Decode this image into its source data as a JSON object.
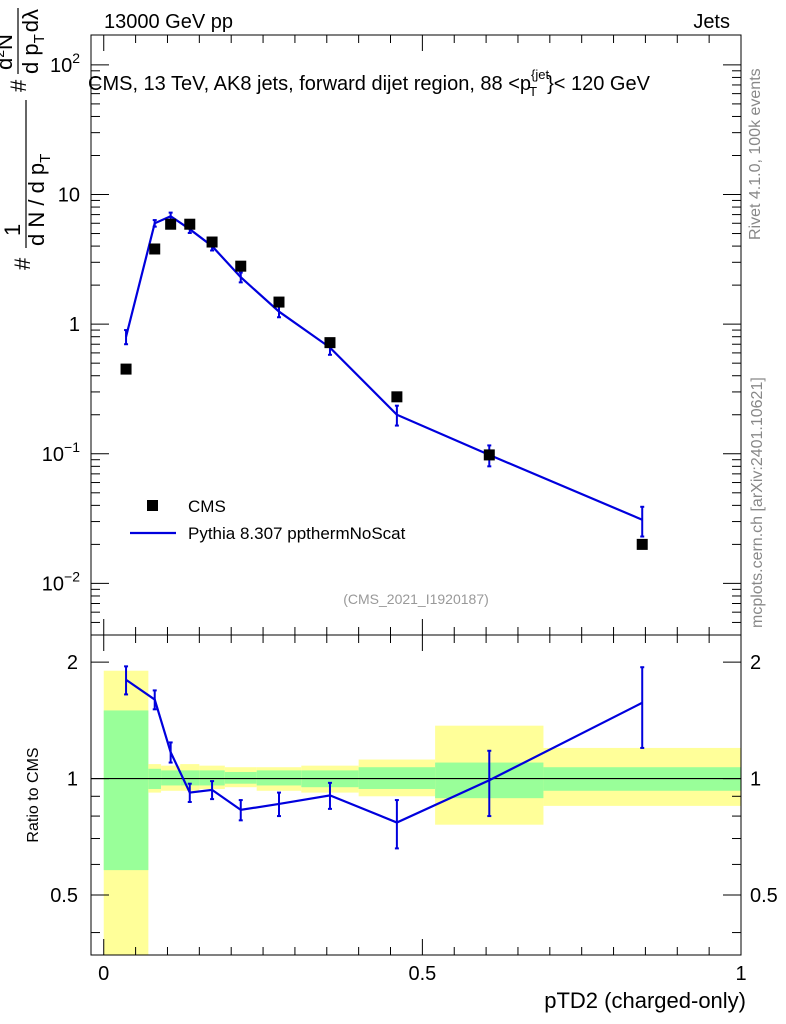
{
  "header": {
    "left": "13000 GeV pp",
    "right": "Jets"
  },
  "side_labels": {
    "rivet": "Rivet 4.1.0,  100k events",
    "mcplots": "mcplots.cern.ch [arXiv:2401.10621]"
  },
  "chart_data": {
    "type": "scatter",
    "title": "CMS, 13 TeV, AK8 jets, forward dijet region, 88 <p",
    "title_sup": "{jet",
    "title_sub": "T",
    "title_end": "}< 120 GeV",
    "analysis_id": "(CMS_2021_I1920187)",
    "xlabel": "pTD2 (charged-only)",
    "ylabel_main": {
      "hash1": "#",
      "one": "1",
      "dN": "d N / d p",
      "dN_sub": "T",
      "hash2": "#",
      "d2N": "d",
      "d2N_sup": "2",
      "d2N_N": "N",
      "dpt": "d p",
      "dpt_sub": "T",
      "dlambda": "dλ"
    },
    "ylabel_ratio": "Ratio to CMS",
    "xlim": [
      -0.02,
      1.0
    ],
    "ylim_main": [
      0.004,
      170
    ],
    "ylim_ratio": [
      0.35,
      2.35
    ],
    "x_ticks": [
      {
        "v": 0,
        "label": "0"
      },
      {
        "v": 0.5,
        "label": "0.5"
      },
      {
        "v": 1,
        "label": "1"
      }
    ],
    "y_ticks_main": [
      {
        "v": 0.01,
        "base": "10",
        "exp": "−2"
      },
      {
        "v": 0.1,
        "base": "10",
        "exp": "−1"
      },
      {
        "v": 1,
        "base": "1",
        "exp": ""
      },
      {
        "v": 10,
        "base": "10",
        "exp": ""
      },
      {
        "v": 100,
        "base": "10",
        "exp": "2"
      }
    ],
    "y_ticks_ratio": [
      {
        "v": 0.5,
        "label": "0.5"
      },
      {
        "v": 1,
        "label": "1"
      },
      {
        "v": 2,
        "label": "2"
      }
    ],
    "bin_edges": [
      0.0,
      0.07,
      0.09,
      0.12,
      0.15,
      0.19,
      0.24,
      0.31,
      0.4,
      0.52,
      0.69,
      1.0
    ],
    "series": [
      {
        "name": "CMS",
        "kind": "markers",
        "color": "#000000",
        "x": [
          0.035,
          0.08,
          0.105,
          0.135,
          0.17,
          0.215,
          0.275,
          0.355,
          0.46,
          0.605,
          0.845
        ],
        "y": [
          0.45,
          3.8,
          5.9,
          5.9,
          4.3,
          2.8,
          1.48,
          0.72,
          0.275,
          0.098,
          0.02
        ]
      },
      {
        "name": "Pythia 8.307 ppthermNoScat",
        "kind": "line",
        "color": "#0000dd",
        "x": [
          0.035,
          0.08,
          0.105,
          0.135,
          0.17,
          0.215,
          0.275,
          0.355,
          0.46,
          0.605,
          0.845
        ],
        "y": [
          0.8,
          6.0,
          6.8,
          5.4,
          4.0,
          2.3,
          1.25,
          0.66,
          0.2,
          0.098,
          0.031
        ],
        "yerr": [
          0.1,
          0.35,
          0.45,
          0.35,
          0.3,
          0.2,
          0.12,
          0.08,
          0.035,
          0.018,
          0.008
        ]
      }
    ],
    "ratio": {
      "values": [
        1.8,
        1.6,
        1.17,
        0.92,
        0.935,
        0.83,
        0.86,
        0.905,
        0.77,
        0.99,
        1.57
      ],
      "errors": [
        0.15,
        0.09,
        0.07,
        0.05,
        0.05,
        0.05,
        0.06,
        0.07,
        0.11,
        0.19,
        0.37
      ],
      "band_green": [
        [
          0.58,
          1.5
        ],
        [
          0.94,
          1.06
        ],
        [
          0.96,
          1.05
        ],
        [
          0.96,
          1.05
        ],
        [
          0.96,
          1.05
        ],
        [
          0.97,
          1.04
        ],
        [
          0.96,
          1.05
        ],
        [
          0.95,
          1.05
        ],
        [
          0.94,
          1.07
        ],
        [
          0.89,
          1.1
        ],
        [
          0.93,
          1.07
        ]
      ],
      "band_yellow": [
        [
          0.3,
          1.9
        ],
        [
          0.92,
          1.09
        ],
        [
          0.93,
          1.08
        ],
        [
          0.93,
          1.09
        ],
        [
          0.94,
          1.08
        ],
        [
          0.95,
          1.07
        ],
        [
          0.93,
          1.07
        ],
        [
          0.92,
          1.08
        ],
        [
          0.9,
          1.12
        ],
        [
          0.76,
          1.37
        ],
        [
          0.85,
          1.2
        ]
      ]
    }
  }
}
